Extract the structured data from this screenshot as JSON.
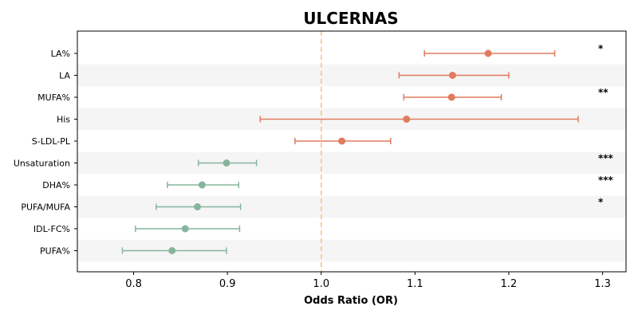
{
  "chart_data": {
    "type": "forest",
    "title": "ULCERNAS",
    "xlabel": "Odds Ratio (OR)",
    "xlim": [
      0.74,
      1.325
    ],
    "xticks": [
      0.8,
      0.9,
      1.0,
      1.1,
      1.2,
      1.3
    ],
    "xtick_labels": [
      "0.8",
      "0.9",
      "1.0",
      "1.1",
      "1.2",
      "1.3"
    ],
    "reference_line": 1.0,
    "grid": false,
    "rows": [
      {
        "label": "LA%",
        "or": 1.178,
        "ci_low": 1.11,
        "ci_high": 1.249,
        "sig": "*"
      },
      {
        "label": "LA",
        "or": 1.14,
        "ci_low": 1.083,
        "ci_high": 1.2,
        "sig": ""
      },
      {
        "label": "MUFA%",
        "or": 1.139,
        "ci_low": 1.088,
        "ci_high": 1.192,
        "sig": "**"
      },
      {
        "label": "His",
        "or": 1.091,
        "ci_low": 0.935,
        "ci_high": 1.274,
        "sig": ""
      },
      {
        "label": "S-LDL-PL",
        "or": 1.022,
        "ci_low": 0.972,
        "ci_high": 1.074,
        "sig": ""
      },
      {
        "label": "Unsaturation",
        "or": 0.899,
        "ci_low": 0.869,
        "ci_high": 0.931,
        "sig": "***"
      },
      {
        "label": "DHA%",
        "or": 0.873,
        "ci_low": 0.836,
        "ci_high": 0.912,
        "sig": "***"
      },
      {
        "label": "PUFA/MUFA",
        "or": 0.868,
        "ci_low": 0.824,
        "ci_high": 0.914,
        "sig": "*"
      },
      {
        "label": "IDL-FC%",
        "or": 0.855,
        "ci_low": 0.802,
        "ci_high": 0.913,
        "sig": ""
      },
      {
        "label": "PUFA%",
        "or": 0.841,
        "ci_low": 0.788,
        "ci_high": 0.899,
        "sig": ""
      }
    ],
    "colors": {
      "risk": "#e07b5f",
      "protective": "#86b59c",
      "reference_line": "#f0c987",
      "band": "#f5f5f5",
      "axis": "#000000"
    }
  }
}
